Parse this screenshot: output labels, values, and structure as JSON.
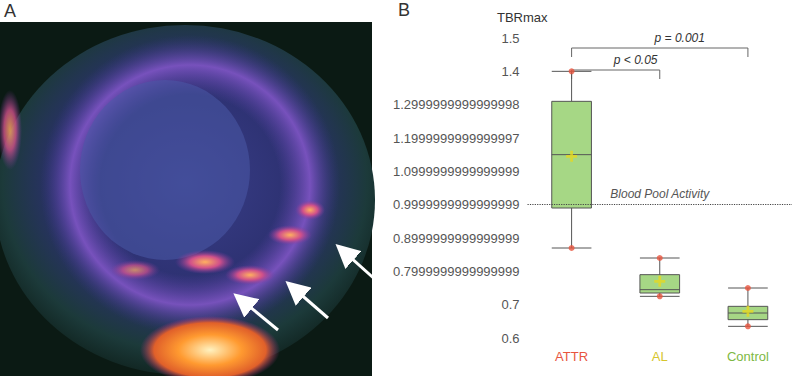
{
  "panel_labels": [
    "A",
    "B"
  ],
  "chart_data": {
    "type": "boxplot",
    "y_label": "TBRmax",
    "categories": [
      "ATTR",
      "AL",
      "Control"
    ],
    "colors": [
      "#e8553f",
      "#d6c52c",
      "#7db843"
    ],
    "color": "#a6d785",
    "min": [
      0.87,
      0.725,
      0.635
    ],
    "q1": [
      0.99,
      0.735,
      0.655
    ],
    "median": [
      1.15,
      0.745,
      0.675
    ],
    "q3": [
      1.31,
      0.79,
      0.695
    ],
    "max": [
      1.4,
      0.84,
      0.75
    ],
    "means": [
      1.145,
      0.77,
      0.68
    ],
    "ylim": [
      0.6,
      1.5
    ],
    "yticks": [
      0.6,
      0.7,
      0.8,
      0.9,
      1,
      1.1,
      1.2,
      1.3,
      1.4,
      1.5
    ],
    "grid": false,
    "reference_line": {
      "value": 1,
      "label": "Blood Pool Activity"
    },
    "comparisons": [
      {
        "from": "ATTR",
        "to": "AL",
        "label": "p < 0.05"
      },
      {
        "from": "ATTR",
        "to": "Control",
        "label": "p = 0.001"
      }
    ]
  }
}
